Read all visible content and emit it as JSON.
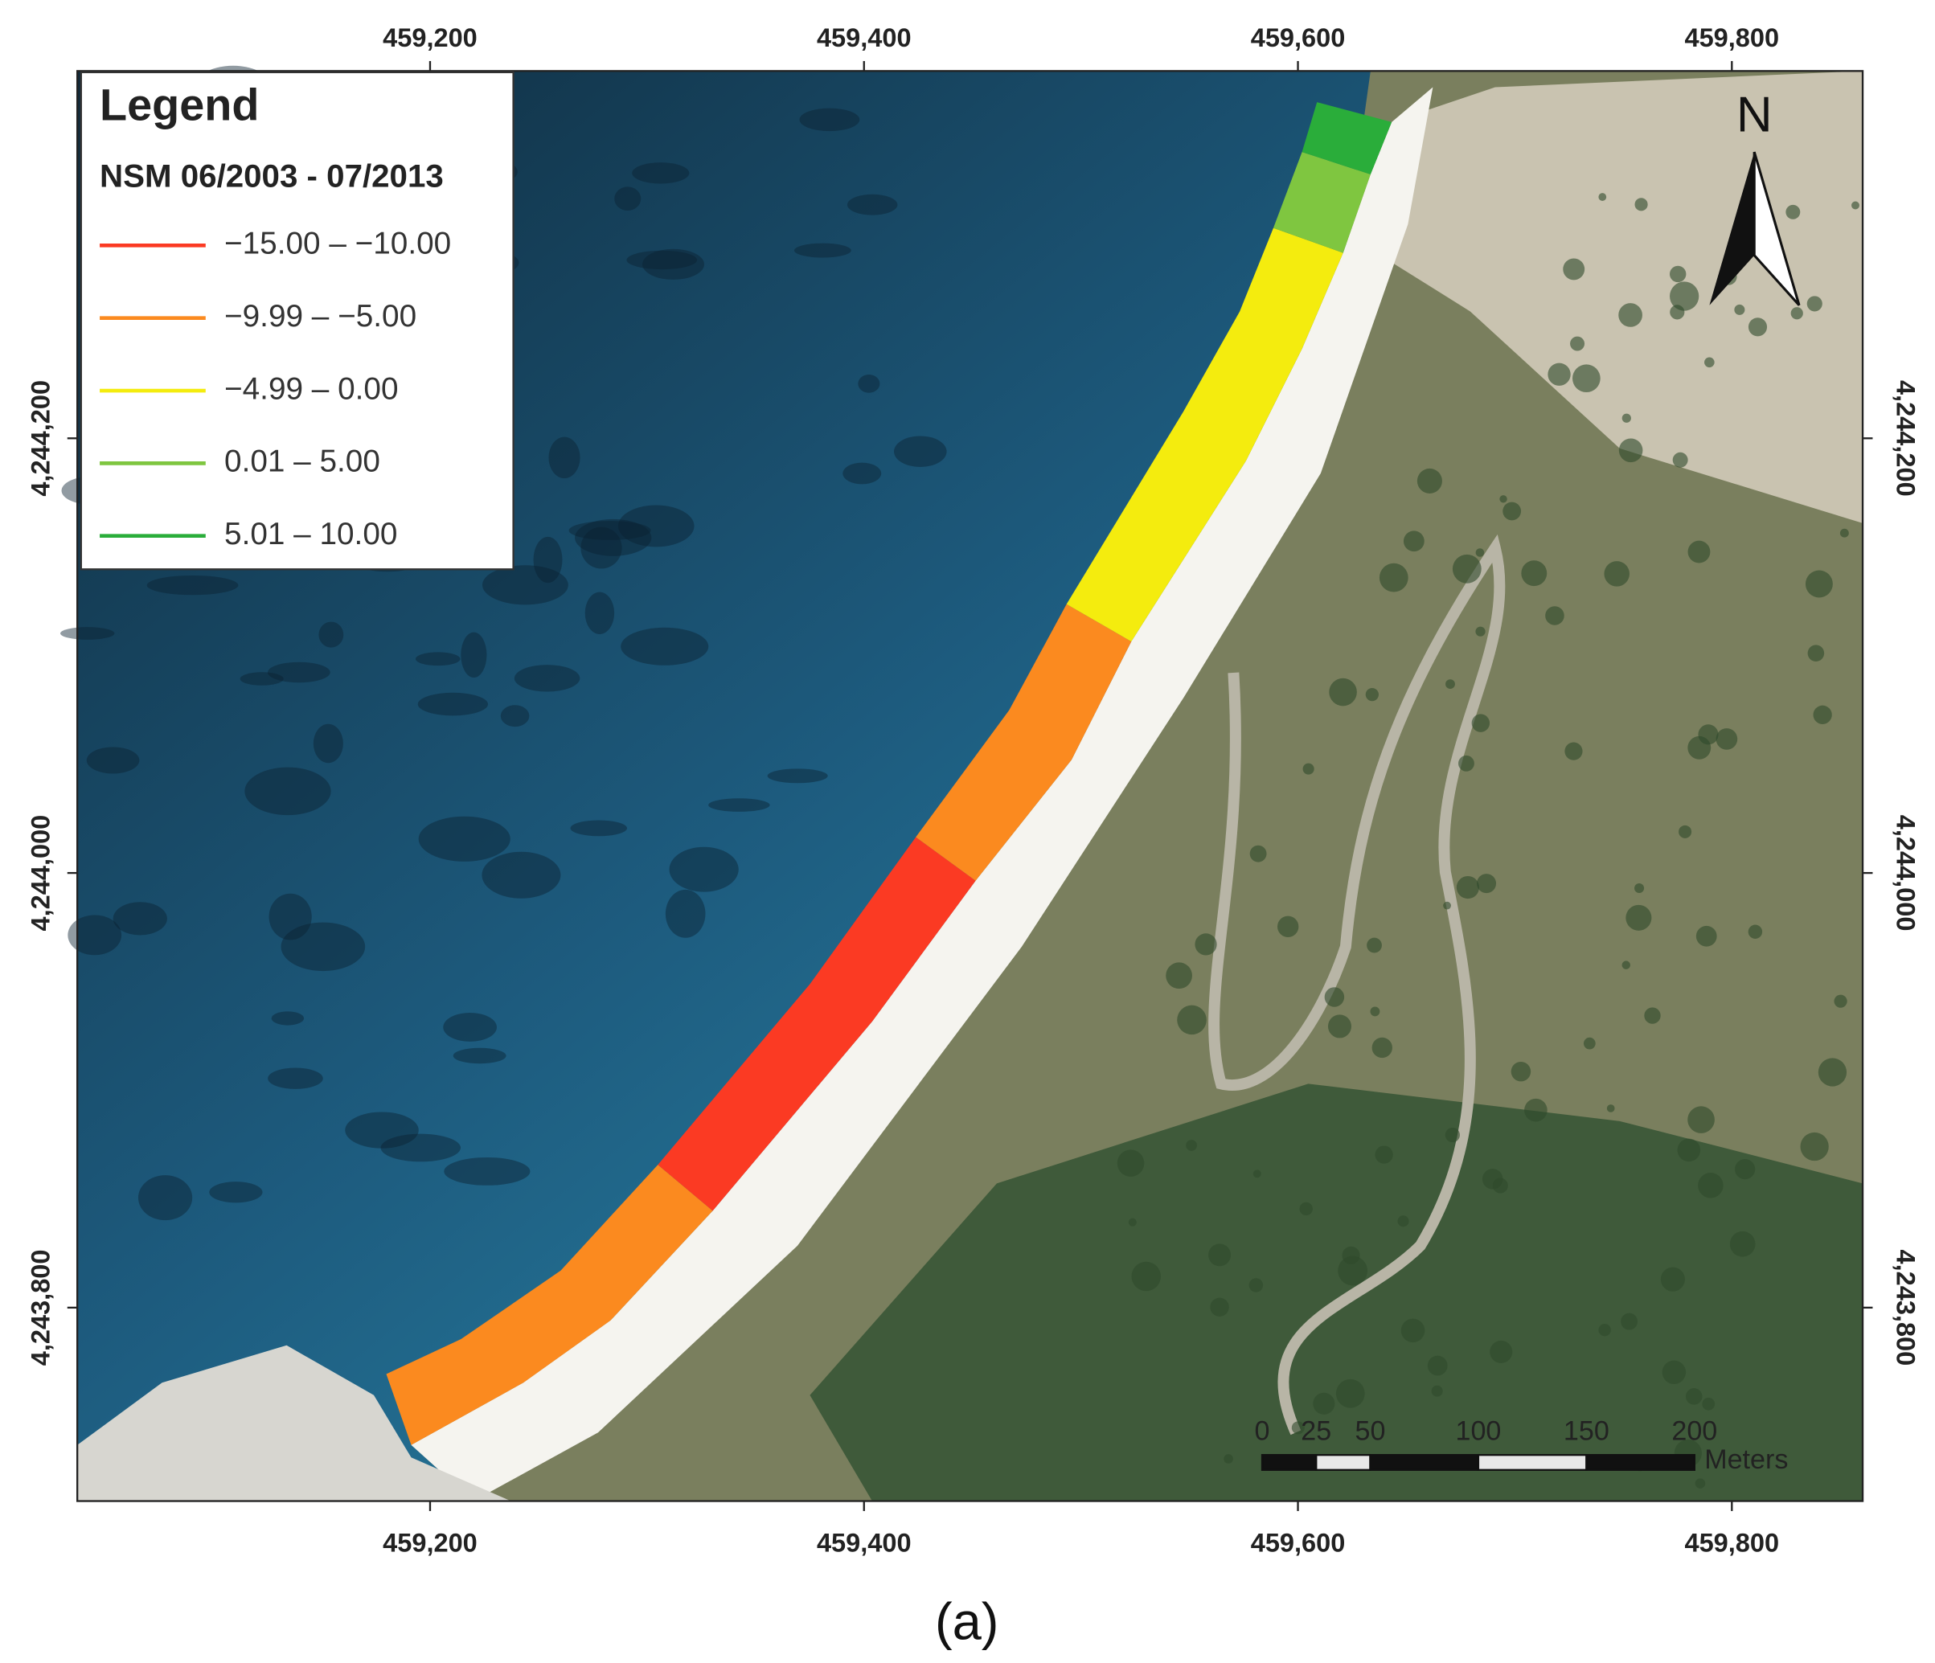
{
  "map": {
    "xlim": [
      459037.4,
      459860.3
    ],
    "ylim": [
      4243711,
      4244369
    ],
    "xticks": [
      {
        "value": 459200,
        "label": "459,200"
      },
      {
        "value": 459400,
        "label": "459,400"
      },
      {
        "value": 459600,
        "label": "459,600"
      },
      {
        "value": 459800,
        "label": "459,800"
      }
    ],
    "yticks": [
      {
        "value": 4243800,
        "label": "4,243,800"
      },
      {
        "value": 4244000,
        "label": "4,244,000"
      },
      {
        "value": 4244200,
        "label": "4,244,200"
      }
    ],
    "north": "N",
    "legend": {
      "title": "Legend",
      "subtitle": "NSM 06/2003 - 07/2013",
      "classes": [
        {
          "label": "−15.00 – −10.00",
          "color": "#fb3a23"
        },
        {
          "label": "−9.99 – −5.00",
          "color": "#fb8a1f"
        },
        {
          "label": "−4.99 – 0.00",
          "color": "#f4ec0e"
        },
        {
          "label": "0.01 – 5.00",
          "color": "#7fc640"
        },
        {
          "label": "5.01 – 10.00",
          "color": "#2aad3a"
        }
      ]
    },
    "scale_bar": {
      "ticks": [
        0,
        25,
        50,
        100,
        150,
        200
      ],
      "unit": "Meters"
    },
    "caption": "(a)"
  }
}
